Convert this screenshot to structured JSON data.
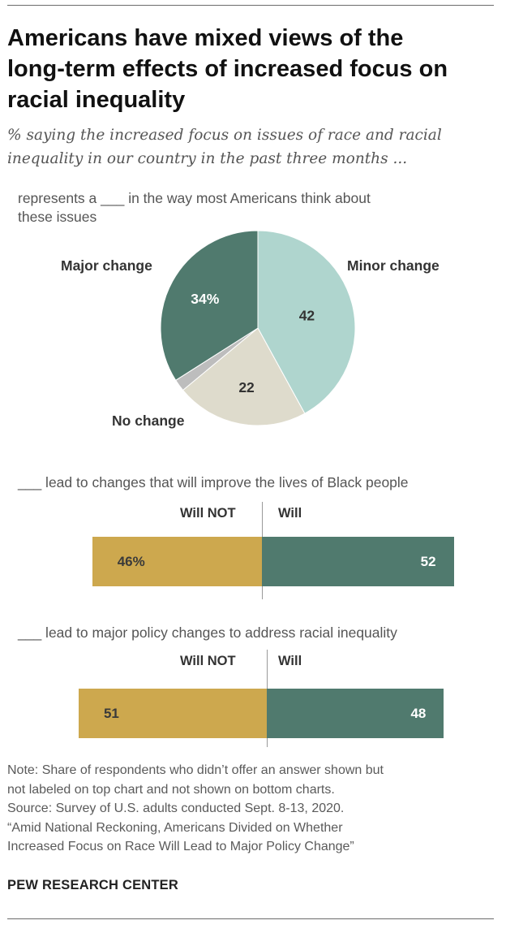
{
  "header": {
    "title_lines": [
      "Americans have mixed views of the",
      "long-term effects of increased focus on",
      "racial inequality"
    ],
    "subtitle_lines": [
      "% saying the increased focus on issues of race and racial",
      "inequality in our country in the past three months ..."
    ]
  },
  "chart_data": [
    {
      "type": "pie",
      "title_lines": [
        "represents a ___ in the way most Americans think about",
        "these issues"
      ],
      "slices": [
        {
          "name": "Minor change",
          "value": 42,
          "label": "42",
          "color": "#afd5ce"
        },
        {
          "name": "No change",
          "value": 22,
          "label": "22",
          "color": "#dedbcc"
        },
        {
          "name": "No answer",
          "value": 2,
          "label": "",
          "color": "#bdbdbd"
        },
        {
          "name": "Major change",
          "value": 34,
          "label": "34%",
          "color": "#507a6e"
        }
      ]
    },
    {
      "type": "bar",
      "orientation": "diverging-horizontal",
      "title": "___ lead to changes that will improve the lives of Black people",
      "categories": [
        "Will NOT",
        "Will"
      ],
      "values": [
        46,
        52
      ],
      "labels": [
        "46%",
        "52"
      ],
      "colors": [
        "#cda84e",
        "#507a6e"
      ]
    },
    {
      "type": "bar",
      "orientation": "diverging-horizontal",
      "title": "___ lead to major policy changes to address racial inequality",
      "categories": [
        "Will NOT",
        "Will"
      ],
      "values": [
        51,
        48
      ],
      "labels": [
        "51",
        "48"
      ],
      "colors": [
        "#cda84e",
        "#507a6e"
      ]
    }
  ],
  "footer": {
    "note_lines": [
      "Note: Share of respondents who didn’t offer an answer shown but",
      "not labeled on top chart and not shown on bottom charts.",
      "Source: Survey of U.S. adults conducted Sept. 8-13, 2020.",
      "“Amid National Reckoning, Americans Divided on Whether",
      "Increased Focus on Race Will Lead to Major Policy Change”"
    ],
    "credit": "PEW RESEARCH CENTER"
  }
}
